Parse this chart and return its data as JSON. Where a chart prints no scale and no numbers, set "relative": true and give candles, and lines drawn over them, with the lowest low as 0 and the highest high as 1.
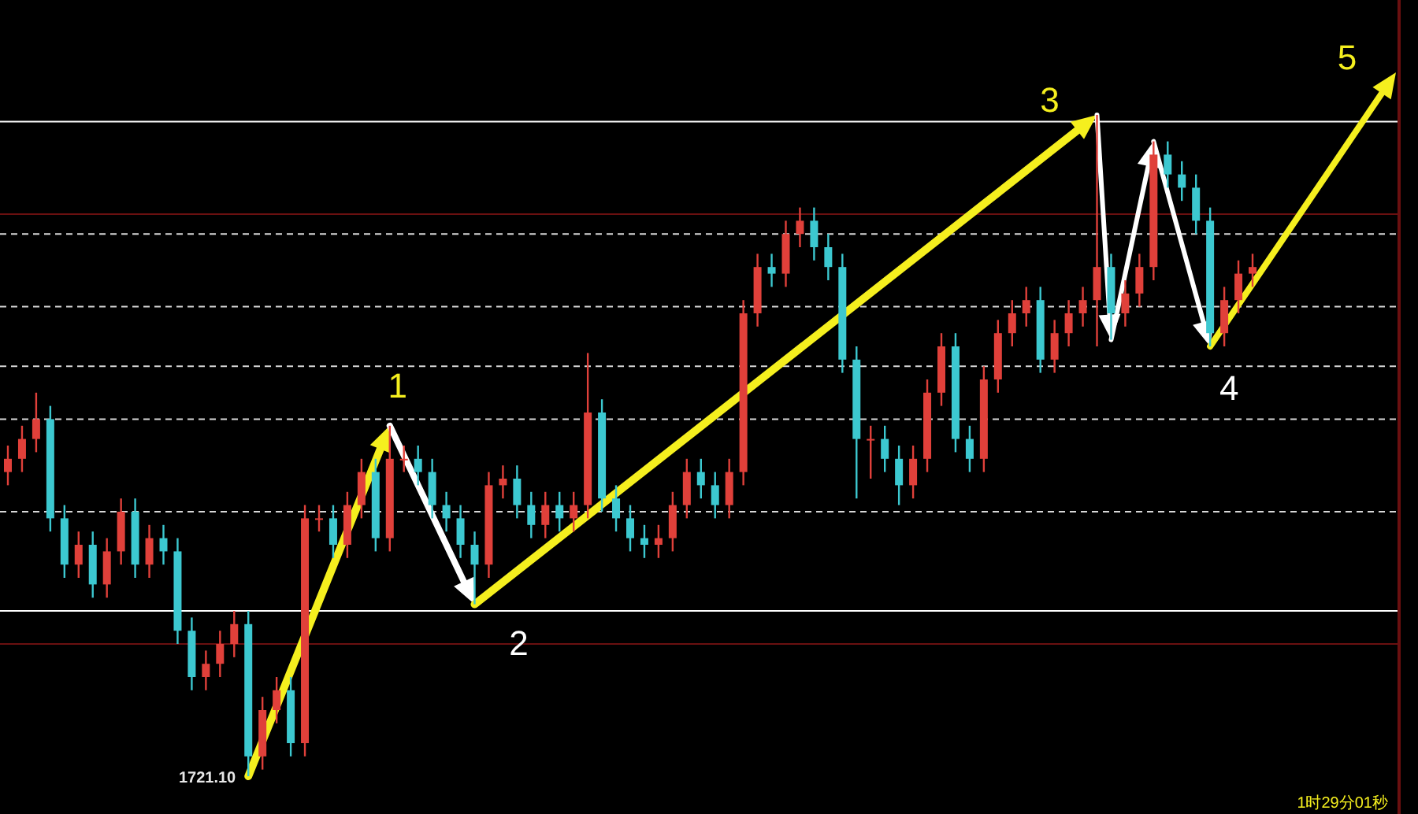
{
  "chart_data": {
    "type": "candlestick",
    "relative": true,
    "categories": [
      null,
      null,
      null,
      null,
      null,
      null,
      null,
      null,
      null,
      null,
      null,
      null,
      null,
      null,
      null,
      null,
      null,
      null,
      null,
      null,
      null,
      null,
      null,
      null,
      null,
      null,
      null,
      null,
      null,
      null,
      null,
      null,
      null,
      null,
      null,
      null,
      null,
      null,
      null,
      null,
      null,
      null,
      null,
      null,
      null,
      null,
      null,
      null,
      null,
      null,
      null,
      null,
      null,
      null,
      null,
      null,
      null,
      null,
      null,
      null,
      null,
      null,
      null,
      null,
      null,
      null,
      null,
      null,
      null,
      null,
      null,
      null,
      null,
      null,
      null,
      null,
      null,
      null,
      null,
      null,
      null,
      null,
      null,
      null,
      null,
      null,
      null,
      null,
      null
    ],
    "ohlc": [
      [
        0.46,
        0.5,
        0.44,
        0.48
      ],
      [
        0.48,
        0.53,
        0.46,
        0.51
      ],
      [
        0.51,
        0.58,
        0.49,
        0.54
      ],
      [
        0.54,
        0.56,
        0.37,
        0.39
      ],
      [
        0.39,
        0.41,
        0.3,
        0.32
      ],
      [
        0.32,
        0.37,
        0.3,
        0.35
      ],
      [
        0.35,
        0.37,
        0.27,
        0.29
      ],
      [
        0.29,
        0.36,
        0.27,
        0.34
      ],
      [
        0.34,
        0.42,
        0.32,
        0.4
      ],
      [
        0.4,
        0.42,
        0.3,
        0.32
      ],
      [
        0.32,
        0.38,
        0.3,
        0.36
      ],
      [
        0.36,
        0.38,
        0.32,
        0.34
      ],
      [
        0.34,
        0.36,
        0.2,
        0.22
      ],
      [
        0.22,
        0.24,
        0.13,
        0.15
      ],
      [
        0.15,
        0.19,
        0.13,
        0.17
      ],
      [
        0.17,
        0.22,
        0.15,
        0.2
      ],
      [
        0.2,
        0.25,
        0.18,
        0.23
      ],
      [
        0.23,
        0.25,
        0.0,
        0.03
      ],
      [
        0.03,
        0.12,
        0.01,
        0.1
      ],
      [
        0.1,
        0.15,
        0.08,
        0.13
      ],
      [
        0.13,
        0.15,
        0.03,
        0.05
      ],
      [
        0.05,
        0.41,
        0.03,
        0.39
      ],
      [
        0.39,
        0.41,
        0.37,
        0.39
      ],
      [
        0.39,
        0.41,
        0.33,
        0.35
      ],
      [
        0.35,
        0.43,
        0.33,
        0.41
      ],
      [
        0.41,
        0.48,
        0.39,
        0.46
      ],
      [
        0.46,
        0.48,
        0.34,
        0.36
      ],
      [
        0.36,
        0.53,
        0.34,
        0.48
      ],
      [
        0.48,
        0.5,
        0.46,
        0.48
      ],
      [
        0.48,
        0.5,
        0.44,
        0.46
      ],
      [
        0.46,
        0.48,
        0.39,
        0.41
      ],
      [
        0.41,
        0.43,
        0.37,
        0.39
      ],
      [
        0.39,
        0.41,
        0.33,
        0.35
      ],
      [
        0.35,
        0.37,
        0.26,
        0.32
      ],
      [
        0.32,
        0.46,
        0.3,
        0.44
      ],
      [
        0.44,
        0.47,
        0.42,
        0.45
      ],
      [
        0.45,
        0.47,
        0.39,
        0.41
      ],
      [
        0.41,
        0.43,
        0.36,
        0.38
      ],
      [
        0.38,
        0.43,
        0.36,
        0.41
      ],
      [
        0.41,
        0.43,
        0.37,
        0.39
      ],
      [
        0.39,
        0.43,
        0.37,
        0.41
      ],
      [
        0.41,
        0.64,
        0.39,
        0.55
      ],
      [
        0.55,
        0.57,
        0.4,
        0.42
      ],
      [
        0.42,
        0.44,
        0.37,
        0.39
      ],
      [
        0.39,
        0.41,
        0.34,
        0.36
      ],
      [
        0.36,
        0.38,
        0.33,
        0.35
      ],
      [
        0.35,
        0.38,
        0.33,
        0.36
      ],
      [
        0.36,
        0.43,
        0.34,
        0.41
      ],
      [
        0.41,
        0.48,
        0.39,
        0.46
      ],
      [
        0.46,
        0.48,
        0.42,
        0.44
      ],
      [
        0.44,
        0.46,
        0.39,
        0.41
      ],
      [
        0.41,
        0.48,
        0.39,
        0.46
      ],
      [
        0.46,
        0.72,
        0.44,
        0.7
      ],
      [
        0.7,
        0.79,
        0.68,
        0.77
      ],
      [
        0.77,
        0.79,
        0.74,
        0.76
      ],
      [
        0.76,
        0.84,
        0.74,
        0.82
      ],
      [
        0.82,
        0.86,
        0.8,
        0.84
      ],
      [
        0.84,
        0.86,
        0.78,
        0.8
      ],
      [
        0.8,
        0.82,
        0.75,
        0.77
      ],
      [
        0.77,
        0.79,
        0.61,
        0.63
      ],
      [
        0.63,
        0.65,
        0.42,
        0.51
      ],
      [
        0.51,
        0.53,
        0.45,
        0.51
      ],
      [
        0.51,
        0.53,
        0.46,
        0.48
      ],
      [
        0.48,
        0.5,
        0.41,
        0.44
      ],
      [
        0.44,
        0.5,
        0.42,
        0.48
      ],
      [
        0.48,
        0.6,
        0.46,
        0.58
      ],
      [
        0.58,
        0.67,
        0.56,
        0.65
      ],
      [
        0.65,
        0.67,
        0.49,
        0.51
      ],
      [
        0.51,
        0.53,
        0.46,
        0.48
      ],
      [
        0.48,
        0.62,
        0.46,
        0.6
      ],
      [
        0.6,
        0.69,
        0.58,
        0.67
      ],
      [
        0.67,
        0.72,
        0.65,
        0.7
      ],
      [
        0.7,
        0.74,
        0.68,
        0.72
      ],
      [
        0.72,
        0.74,
        0.61,
        0.63
      ],
      [
        0.63,
        0.69,
        0.61,
        0.67
      ],
      [
        0.67,
        0.72,
        0.65,
        0.7
      ],
      [
        0.7,
        0.74,
        0.68,
        0.72
      ],
      [
        0.72,
        1.0,
        0.65,
        0.77
      ],
      [
        0.77,
        0.79,
        0.66,
        0.7
      ],
      [
        0.7,
        0.75,
        0.68,
        0.73
      ],
      [
        0.73,
        0.79,
        0.71,
        0.77
      ],
      [
        0.77,
        0.96,
        0.75,
        0.94
      ],
      [
        0.94,
        0.96,
        0.89,
        0.91
      ],
      [
        0.91,
        0.93,
        0.87,
        0.89
      ],
      [
        0.89,
        0.91,
        0.82,
        0.84
      ],
      [
        0.84,
        0.86,
        0.65,
        0.67
      ],
      [
        0.67,
        0.74,
        0.65,
        0.72
      ],
      [
        0.72,
        0.78,
        0.7,
        0.76
      ],
      [
        0.76,
        0.79,
        0.74,
        0.77
      ]
    ],
    "ref_lines": [
      {
        "axis": "y",
        "value": 0.99,
        "color": "#ffffff",
        "line_style": "solid"
      },
      {
        "axis": "y",
        "value": 0.25,
        "color": "#ffffff",
        "line_style": "solid"
      },
      {
        "axis": "y",
        "value": 0.82,
        "color": "#d8d8d8",
        "line_style": "dashed"
      },
      {
        "axis": "y",
        "value": 0.71,
        "color": "#d8d8d8",
        "line_style": "dashed"
      },
      {
        "axis": "y",
        "value": 0.62,
        "color": "#d8d8d8",
        "line_style": "dashed"
      },
      {
        "axis": "y",
        "value": 0.54,
        "color": "#d8d8d8",
        "line_style": "dashed"
      },
      {
        "axis": "y",
        "value": 0.4,
        "color": "#d8d8d8",
        "line_style": "dashed"
      },
      {
        "axis": "y",
        "value": 0.85,
        "color": "#6a1010",
        "line_style": "solid"
      },
      {
        "axis": "y",
        "value": 0.2,
        "color": "#6a1010",
        "line_style": "solid"
      }
    ],
    "annotations": [
      "1",
      "2",
      "3",
      "4",
      "5",
      "1721.10",
      "1时29分01秒"
    ]
  }
}
